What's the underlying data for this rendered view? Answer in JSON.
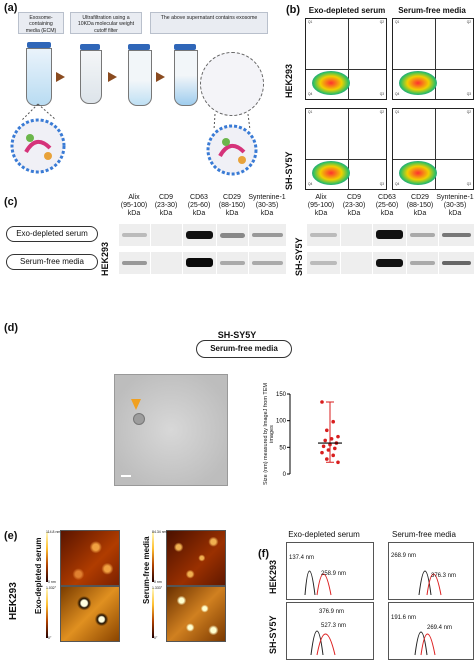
{
  "panel_labels": {
    "a": "(a)",
    "b": "(b)",
    "c": "(c)",
    "d": "(d)",
    "e": "(e)",
    "f": "(f)"
  },
  "panel_a": {
    "steps": [
      "Exosome-containing media (ECM)",
      "Ultrafiltration using a 10KDa molecular weight cutoff filter",
      "The above supernatant contains exosome"
    ]
  },
  "panel_b": {
    "columns": [
      "Exo-depleted serum",
      "Serum-free media"
    ],
    "rows": [
      "HEK293",
      "SH-SY5Y"
    ],
    "quadrant_text": {
      "q1": "Q1",
      "q2": "Q2",
      "q3": "Q3",
      "q4": "Q4"
    }
  },
  "panel_c": {
    "markers": [
      "Alix\n(95-100)\nkDa",
      "CD9\n(23-30)\nkDa",
      "CD63\n(25-60)\nkDa",
      "CD29\n(88-150)\nkDa",
      "Syntenine-1\n(30-35)\nkDa"
    ],
    "markers_right": [
      "Alix\n(95-100)\nkDa",
      "CD9\n(23-30)\nkDa",
      "CD63\n(25-60)\nkDa",
      "CD29\n(88-150)\nkDa",
      "Syntenine-1\n(30-35)\nkDa"
    ],
    "conditions": [
      "Exo-depleted serum",
      "Serum-free media"
    ],
    "cell_left": "HEK293",
    "cell_right": "SH-SY5Y"
  },
  "panel_d": {
    "title": "SH-SY5Y",
    "condition": "Serum-free media",
    "ylabel": "Size (nm) measured by ImageJ from TEM images"
  },
  "chart_data": {
    "type": "scatter",
    "title": "",
    "xlabel": "",
    "ylabel": "Size (nm) measured by ImageJ from TEM images",
    "ylim": [
      0,
      150
    ],
    "yticks": [
      0,
      50,
      100,
      150
    ],
    "points": [
      135,
      98,
      82,
      70,
      66,
      63,
      58,
      55,
      52,
      48,
      45,
      40,
      35,
      28,
      22
    ],
    "mean": 58,
    "sd": [
      22,
      135
    ],
    "grid": false,
    "color": "#d81e1e"
  },
  "panel_e": {
    "row_label": "HEK293",
    "conditions": [
      "Exo-depleted serum",
      "Serum-free media"
    ],
    "scale_top_left": "114.8 nm",
    "scale_top_right": "84.34 nm",
    "scale_bot_left": "1.032°",
    "scale_bot_right": "1.333°",
    "scale_zero_h": "0 nm",
    "scale_zero_p": "0°"
  },
  "panel_f": {
    "columns": [
      "Exo-depleted serum",
      "Serum-free media"
    ],
    "rows": [
      "HEK293",
      "SH-SY5Y"
    ],
    "peaks": [
      [
        "137.4 nm",
        "258.9 nm"
      ],
      [
        "268.9 nm",
        "376.3 nm"
      ],
      [
        "376.9 nm",
        "527.3 nm"
      ],
      [
        "191.6 nm",
        "269.4 nm"
      ]
    ]
  },
  "colors": {
    "accent": "#2f66b8",
    "scatter": "#d81e1e",
    "arrow": "#8a4b20"
  }
}
